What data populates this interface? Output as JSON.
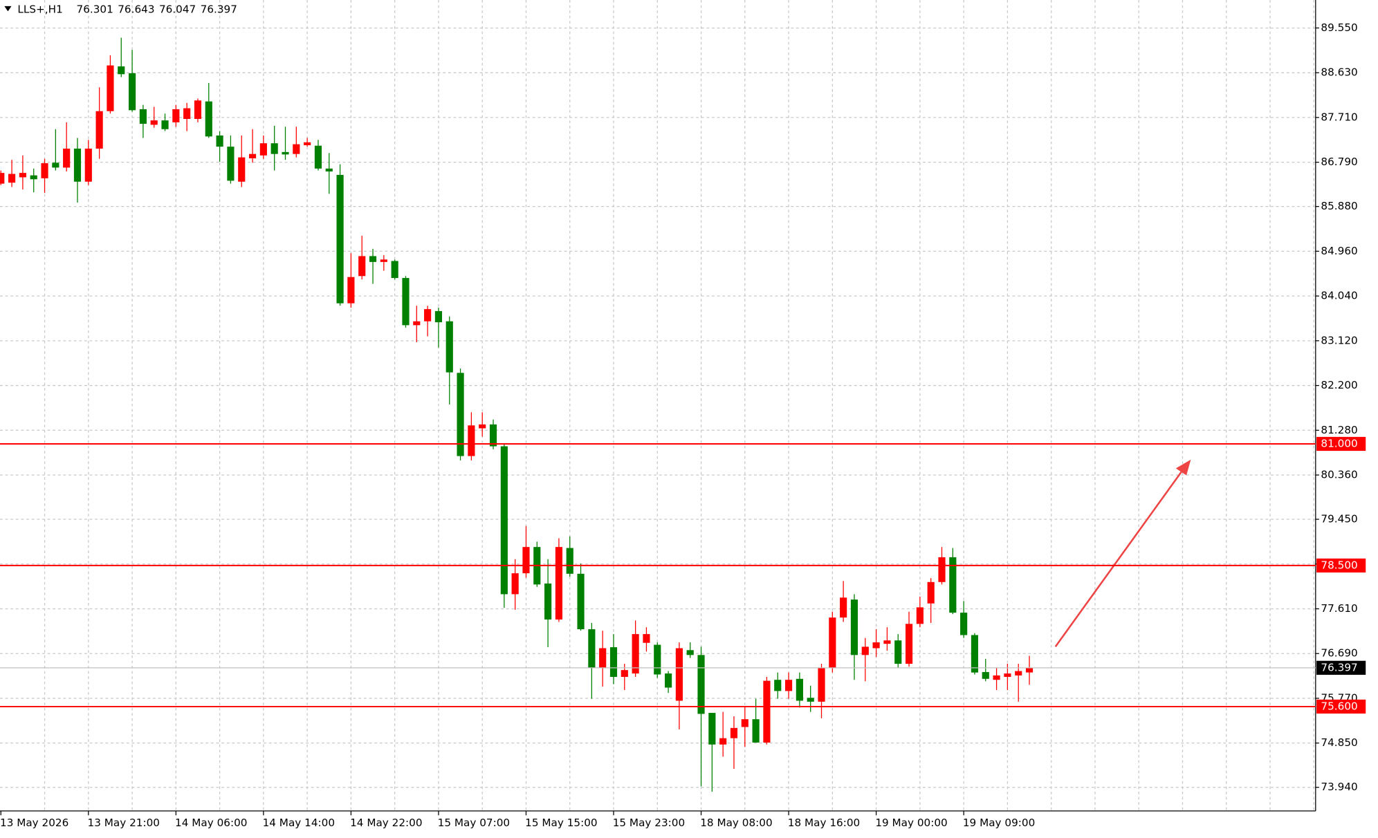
{
  "chart_data": {
    "type": "candlestick",
    "title": "LLS+,H1",
    "categories": [
      "13 May 2026",
      null,
      null,
      null,
      null,
      null,
      null,
      null,
      "13 May 21:00",
      null,
      null,
      null,
      null,
      null,
      null,
      null,
      "14 May 06:00",
      null,
      null,
      null,
      null,
      null,
      null,
      null,
      "14 May 14:00",
      null,
      null,
      null,
      null,
      null,
      null,
      null,
      "14 May 22:00",
      null,
      null,
      null,
      null,
      null,
      null,
      null,
      "15 May 07:00",
      null,
      null,
      null,
      null,
      null,
      null,
      null,
      "15 May 15:00",
      null,
      null,
      null,
      null,
      null,
      null,
      null,
      "15 May 23:00",
      null,
      null,
      null,
      null,
      null,
      null,
      null,
      "18 May 08:00",
      null,
      null,
      null,
      null,
      null,
      null,
      null,
      "18 May 16:00",
      null,
      null,
      null,
      null,
      null,
      null,
      null,
      "19 May 00:00",
      null,
      null,
      null,
      null,
      null,
      null,
      null,
      "19 May 09:00",
      null,
      null,
      null,
      null,
      null,
      null
    ],
    "open": [
      86.35,
      86.37,
      86.48,
      86.52,
      86.46,
      86.78,
      86.68,
      87.07,
      86.39,
      87.07,
      87.84,
      88.76,
      88.62,
      87.88,
      87.56,
      87.65,
      87.61,
      87.68,
      87.68,
      88.04,
      87.34,
      87.11,
      86.39,
      86.87,
      86.93,
      87.18,
      87.0,
      86.96,
      87.14,
      87.13,
      86.66,
      86.53,
      83.89,
      84.45,
      84.86,
      84.74,
      84.76,
      84.41,
      83.44,
      83.52,
      83.73,
      83.52,
      82.46,
      80.75,
      81.32,
      81.4,
      80.95,
      77.91,
      78.34,
      78.88,
      78.13,
      77.39,
      78.86,
      78.33,
      77.19,
      76.39,
      76.82,
      76.21,
      76.28,
      76.91,
      76.87,
      76.28,
      75.72,
      76.76,
      76.66,
      75.47,
      74.82,
      74.95,
      75.18,
      75.34,
      74.86,
      76.15,
      75.92,
      76.17,
      75.78,
      75.7,
      76.39,
      77.43,
      77.8,
      76.66,
      76.8,
      76.89,
      76.96,
      76.48,
      77.3,
      77.72,
      78.16,
      78.67,
      77.53,
      77.07,
      76.31,
      76.15,
      76.21,
      76.24,
      76.301
    ],
    "high": [
      86.62,
      86.84,
      86.93,
      86.66,
      86.86,
      87.47,
      87.61,
      87.29,
      87.25,
      88.33,
      88.99,
      89.35,
      89.1,
      87.97,
      87.93,
      87.79,
      87.97,
      88.01,
      88.1,
      88.42,
      87.43,
      87.34,
      87.34,
      87.47,
      87.34,
      87.54,
      87.52,
      87.52,
      87.29,
      87.25,
      86.98,
      86.75,
      84.92,
      85.28,
      85.01,
      84.88,
      84.79,
      84.45,
      83.84,
      83.84,
      83.8,
      83.62,
      82.55,
      81.65,
      81.65,
      81.5,
      81.0,
      78.63,
      79.31,
      78.99,
      78.63,
      79.06,
      79.1,
      78.54,
      77.32,
      77.16,
      77.09,
      76.48,
      77.37,
      77.23,
      76.92,
      76.33,
      76.92,
      76.92,
      76.83,
      75.47,
      75.49,
      75.4,
      75.61,
      75.76,
      76.21,
      76.3,
      76.3,
      76.3,
      76.03,
      76.48,
      77.55,
      78.18,
      77.91,
      77.01,
      77.19,
      77.23,
      77.09,
      77.55,
      77.86,
      78.24,
      78.88,
      78.86,
      77.77,
      77.11,
      76.58,
      76.39,
      76.48,
      76.48,
      76.643
    ],
    "low": [
      86.32,
      86.28,
      86.23,
      86.17,
      86.16,
      86.62,
      86.6,
      85.96,
      86.32,
      86.86,
      87.79,
      88.54,
      87.83,
      87.29,
      87.5,
      87.43,
      87.52,
      87.43,
      87.61,
      87.29,
      86.8,
      86.35,
      86.28,
      86.78,
      86.86,
      86.62,
      86.84,
      86.89,
      87.11,
      86.62,
      86.14,
      83.84,
      83.8,
      84.38,
      84.29,
      84.56,
      84.38,
      83.39,
      83.09,
      83.21,
      82.98,
      81.81,
      80.66,
      80.66,
      81.15,
      80.89,
      77.63,
      77.59,
      78.25,
      78.06,
      76.82,
      77.34,
      78.27,
      77.16,
      75.76,
      76.01,
      76.06,
      75.94,
      76.21,
      76.73,
      76.19,
      75.88,
      75.13,
      76.6,
      73.96,
      73.85,
      74.57,
      74.32,
      74.77,
      74.86,
      74.82,
      75.76,
      75.76,
      75.58,
      75.49,
      75.36,
      76.3,
      77.34,
      76.15,
      76.12,
      76.62,
      76.75,
      76.39,
      76.42,
      77.23,
      77.32,
      78.11,
      77.5,
      77.01,
      76.26,
      76.12,
      75.94,
      75.94,
      75.7,
      76.047
    ],
    "close": [
      86.57,
      86.55,
      86.57,
      86.44,
      86.77,
      86.68,
      87.07,
      86.39,
      87.07,
      87.84,
      88.78,
      88.6,
      87.86,
      87.58,
      87.65,
      87.47,
      87.88,
      87.9,
      88.06,
      87.32,
      87.11,
      86.41,
      86.89,
      86.96,
      87.18,
      86.96,
      86.95,
      87.16,
      87.2,
      86.66,
      86.6,
      83.89,
      84.43,
      84.86,
      84.74,
      84.79,
      84.41,
      83.44,
      83.52,
      83.77,
      83.5,
      82.47,
      80.75,
      81.38,
      81.4,
      80.95,
      77.91,
      78.34,
      78.88,
      78.11,
      77.39,
      78.88,
      78.33,
      77.19,
      76.39,
      76.8,
      76.21,
      76.35,
      77.09,
      77.09,
      76.26,
      75.99,
      76.8,
      76.66,
      75.45,
      74.82,
      74.95,
      75.16,
      75.34,
      74.86,
      76.13,
      75.92,
      76.15,
      75.72,
      75.7,
      76.39,
      77.43,
      77.84,
      76.66,
      76.83,
      76.92,
      76.96,
      76.48,
      77.3,
      77.64,
      78.16,
      78.67,
      77.53,
      77.07,
      76.3,
      76.17,
      76.24,
      76.28,
      76.33,
      76.397
    ],
    "up_color": "#ff0000",
    "down_color": "#008000",
    "ylim": [
      73.455,
      90.125
    ],
    "yticks": [
      {
        "value": 89.55,
        "label": "89.550"
      },
      {
        "value": 88.63,
        "label": "88.630"
      },
      {
        "value": 87.71,
        "label": "87.710"
      },
      {
        "value": 86.79,
        "label": "86.790"
      },
      {
        "value": 85.88,
        "label": "85.880"
      },
      {
        "value": 84.96,
        "label": "84.960"
      },
      {
        "value": 84.04,
        "label": "84.040"
      },
      {
        "value": 83.12,
        "label": "83.120"
      },
      {
        "value": 82.2,
        "label": "82.200"
      },
      {
        "value": 81.28,
        "label": "81.280"
      },
      {
        "value": 80.36,
        "label": "80.360"
      },
      {
        "value": 79.45,
        "label": "79.450"
      },
      {
        "value": 78.53,
        "label": "78.530"
      },
      {
        "value": 77.61,
        "label": "77.610"
      },
      {
        "value": 76.69,
        "label": "76.690"
      },
      {
        "value": 75.77,
        "label": "75.770"
      },
      {
        "value": 74.85,
        "label": "74.850"
      },
      {
        "value": 73.94,
        "label": "73.940"
      }
    ],
    "grid": true,
    "levels": [
      {
        "value": 81,
        "label": "81.000"
      },
      {
        "value": 78.5,
        "label": "78.500"
      },
      {
        "value": 75.6,
        "label": "75.600"
      }
    ],
    "level_color": "#ff0000"
  }
}
